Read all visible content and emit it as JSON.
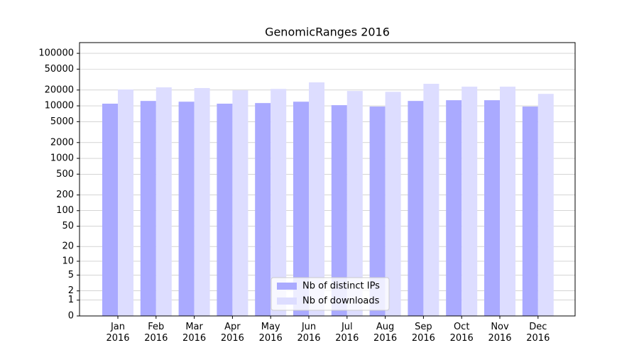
{
  "chart_data": {
    "type": "bar",
    "title": "GenomicRanges 2016",
    "categories": [
      "Jan\n2016",
      "Feb\n2016",
      "Mar\n2016",
      "Apr\n2016",
      "May\n2016",
      "Jun\n2016",
      "Jul\n2016",
      "Aug\n2016",
      "Sep\n2016",
      "Oct\n2016",
      "Nov\n2016",
      "Dec\n2016"
    ],
    "series": [
      {
        "name": "Nb of distinct IPs",
        "color": "#aaaaff",
        "values": [
          11000,
          12400,
          12000,
          11000,
          11300,
          12000,
          10300,
          9700,
          12400,
          12800,
          12800,
          9700
        ]
      },
      {
        "name": "Nb of downloads",
        "color": "#ddddff",
        "values": [
          20500,
          22500,
          21800,
          19800,
          21000,
          28000,
          19200,
          18500,
          26300,
          23200,
          23200,
          16900
        ]
      }
    ],
    "yscale": "log1p",
    "ylim": [
      0,
      160000
    ],
    "yticks": [
      0,
      1,
      2,
      5,
      10,
      20,
      50,
      100,
      200,
      500,
      1000,
      2000,
      5000,
      10000,
      20000,
      50000,
      100000
    ],
    "grid": true,
    "legend": "lower center"
  }
}
